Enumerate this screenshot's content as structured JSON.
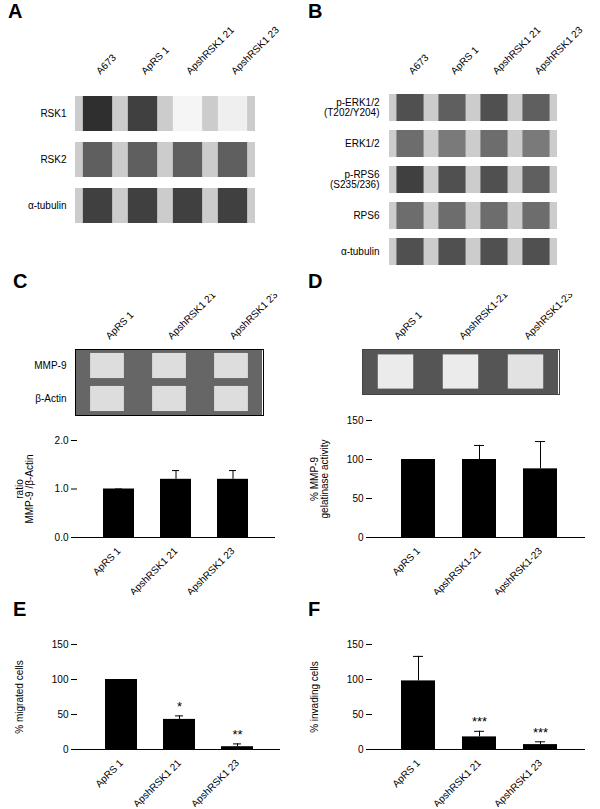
{
  "chart_data": [
    {
      "type": "heatmap",
      "title": "A",
      "categories": [
        "A673",
        "ApRS 1",
        "ApshRSK1 21",
        "ApshRSK1 23"
      ],
      "rows": [
        "RSK1",
        "RSK2",
        "α-tubulin"
      ],
      "cells": [
        [
          0.85,
          0.8,
          0.08,
          0.12
        ],
        [
          0.7,
          0.7,
          0.7,
          0.7
        ],
        [
          0.8,
          0.8,
          0.8,
          0.8
        ]
      ]
    },
    {
      "type": "heatmap",
      "title": "B",
      "categories": [
        "A673",
        "ApRS 1",
        "ApshRSK1 21",
        "ApshRSK1 23"
      ],
      "rows": [
        "p-ERK1/2\n(T202/Y204)",
        "ERK1/2",
        "p-RPS6\n(S235/236)",
        "RPS6",
        "α-tubulin"
      ],
      "cells": [
        [
          0.75,
          0.7,
          0.75,
          0.7
        ],
        [
          0.65,
          0.6,
          0.65,
          0.6
        ],
        [
          0.8,
          0.75,
          0.75,
          0.7
        ],
        [
          0.65,
          0.65,
          0.65,
          0.65
        ],
        [
          0.75,
          0.75,
          0.75,
          0.75
        ]
      ]
    },
    {
      "type": "gel",
      "title": "C",
      "categories": [
        "ApRS 1",
        "ApshRSK1 21",
        "ApshRSK1 23"
      ],
      "rows": [
        "MMP-9",
        "β-Actin"
      ]
    },
    {
      "type": "bar",
      "categories": [
        "ApRS 1",
        "ApshRSK1 21",
        "ApshRSK1 23"
      ],
      "values": [
        1.0,
        1.2,
        1.2
      ],
      "errors": [
        0.0,
        0.18,
        0.18
      ],
      "color": "#000000",
      "ylabel": "ratio\nMMP-9 /β-Actin",
      "ylim": [
        0,
        2
      ],
      "yticks": [
        0,
        1,
        2
      ]
    },
    {
      "type": "gel",
      "title": "D",
      "categories": [
        "ApRS 1",
        "ApshRSK1-21",
        "ApshRSK1-23"
      ],
      "cells": [
        [
          0.85,
          0.85,
          0.8
        ]
      ]
    },
    {
      "type": "bar",
      "categories": [
        "ApRS 1",
        "ApshRSK1-21",
        "ApshRSK1-23"
      ],
      "values": [
        100,
        100,
        88
      ],
      "errors": [
        0,
        18,
        35
      ],
      "color": "#000000",
      "ylabel": "% MMP-9\ngelatinase activity",
      "ylim": [
        0,
        150
      ],
      "yticks": [
        0,
        50,
        100,
        150
      ]
    },
    {
      "type": "bar",
      "title": "E",
      "categories": [
        "ApRS 1",
        "ApshRSK1 21",
        "ApshRSK1 23"
      ],
      "values": [
        100,
        43,
        4
      ],
      "errors": [
        0,
        5,
        4
      ],
      "annotations": [
        null,
        "*",
        "**"
      ],
      "color": "#000000",
      "ylabel": "% migrated cells",
      "ylim": [
        0,
        150
      ],
      "yticks": [
        0,
        50,
        100,
        150
      ]
    },
    {
      "type": "bar",
      "title": "F",
      "categories": [
        "ApRS 1",
        "ApshRSK1 21",
        "ApshRSK1 23"
      ],
      "values": [
        98,
        18,
        7
      ],
      "errors": [
        35,
        8,
        4
      ],
      "annotations": [
        null,
        "***",
        "***"
      ],
      "color": "#000000",
      "ylabel": "% invading cells",
      "ylim": [
        0,
        150
      ],
      "yticks": [
        0,
        50,
        100,
        150
      ]
    }
  ]
}
